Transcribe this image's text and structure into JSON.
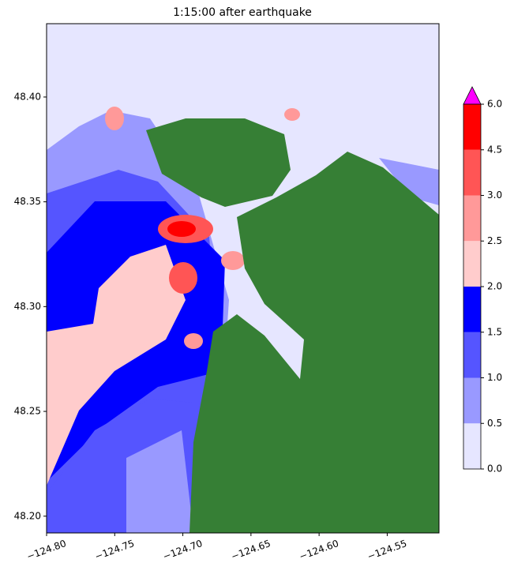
{
  "chart_data": {
    "type": "map",
    "title": "1:15:00 after earthquake",
    "xlim": [
      -124.8,
      -124.512
    ],
    "ylim": [
      48.192,
      48.435
    ],
    "xticks": [
      {
        "value": -124.8,
        "label": "−124.80"
      },
      {
        "value": -124.75,
        "label": "−124.75"
      },
      {
        "value": -124.7,
        "label": "−124.70"
      },
      {
        "value": -124.65,
        "label": "−124.65"
      },
      {
        "value": -124.6,
        "label": "−124.60"
      },
      {
        "value": -124.55,
        "label": "−124.55"
      }
    ],
    "yticks": [
      {
        "value": 48.2,
        "label": "48.20"
      },
      48.25,
      {
        "value": 48.3,
        "label": "48.30"
      },
      48.35,
      {
        "value": 48.4,
        "label": "48.40"
      }
    ],
    "colorbar": {
      "levels": [
        {
          "value": 0,
          "label": "0.0"
        },
        0.5,
        {
          "value": 1,
          "label": "1.0"
        },
        1.5,
        {
          "value": 2,
          "label": "2.0"
        },
        2.5,
        {
          "value": 3,
          "label": "3.0"
        },
        4.5,
        {
          "value": 6,
          "label": "6.0"
        }
      ],
      "colors": [
        "#e6e6ff",
        "#9999ff",
        "#5555ff",
        "#0000ff",
        "#ffcccc",
        "#ff9999",
        "#ff5555",
        "#ff0000"
      ],
      "extend_color": "#ff00ff"
    }
  }
}
